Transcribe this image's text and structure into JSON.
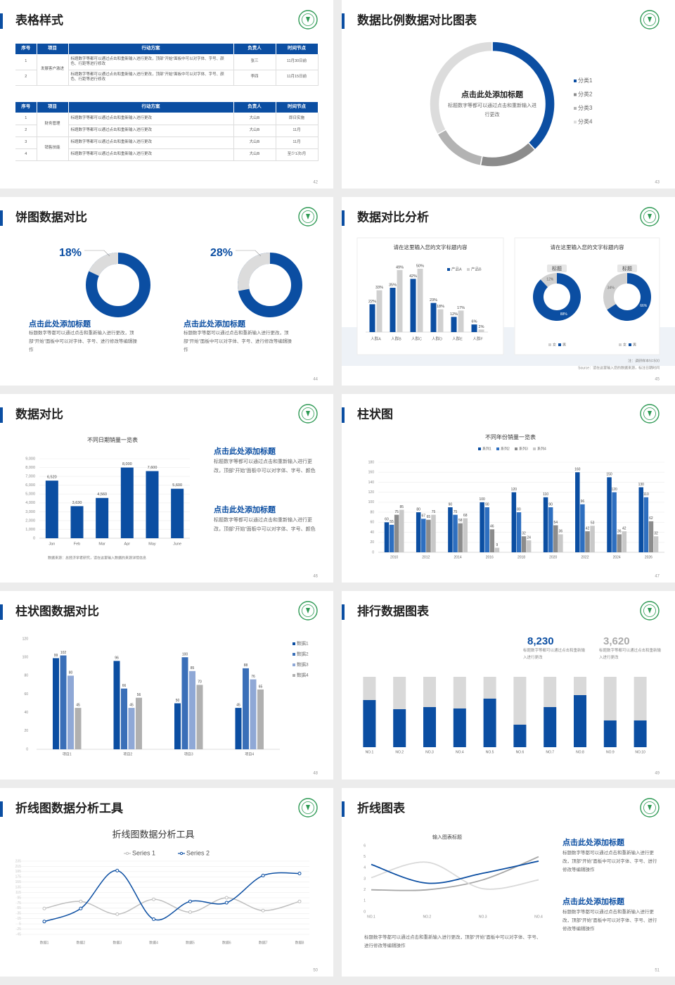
{
  "slides": [
    {
      "title": "表格样式",
      "page": 42,
      "tables": [
        {
          "header": [
            "序号",
            "项目",
            "行动方案",
            "负责人",
            "时间节点"
          ],
          "groups": [
            {
              "item": "发展客户激进",
              "rows": [
                [
                  1,
                  "标题数字等都可以通过点击和重新输入进行更改，顶部“开始”面板中可以对字体、字号、颜色、行距等进行修改",
                  "张三",
                  "11月30日前"
                ],
                [
                  2,
                  "标题数字等都可以通过点击和重新输入进行更改，顶部“开始”面板中可以对字体、字号、颜色、行距等进行修改",
                  "李四",
                  "11月15日前"
                ]
              ]
            }
          ]
        },
        {
          "header": [
            "序号",
            "项目",
            "行动方案",
            "负责人",
            "时间节点"
          ],
          "groups": [
            {
              "item": "财务管理",
              "rows": [
                [
                  1,
                  "标题数字等都可以通过点击和重新输入进行更改",
                  "大山B",
                  "即日实施"
                ],
                [
                  2,
                  "标题数字等都可以通过点击和重新输入进行更改",
                  "大山B",
                  "11月"
                ]
              ]
            },
            {
              "item": "销售技能",
              "rows": [
                [
                  3,
                  "标题数字等都可以通过点击和重新输入进行更改",
                  "大山B",
                  "11月"
                ],
                [
                  4,
                  "标题数字等都可以通过点击和重新输入进行更改",
                  "大山B",
                  "至少1次/月"
                ]
              ]
            }
          ]
        }
      ]
    },
    {
      "title": "数据比例数据对比图表",
      "page": 43,
      "chart": {
        "type": "donut",
        "heading": "点击此处添加标题",
        "text": "标题数字等都可以通过点击和重新输入进行更改",
        "categories": [
          "分类1",
          "分类2",
          "分类3",
          "分类4"
        ],
        "values": [
          38,
          15,
          14,
          33
        ],
        "colors": [
          "#0b4ea2",
          "#8c8c8c",
          "#b3b3b3",
          "#dcdcdc"
        ]
      }
    },
    {
      "title": "饼图数据对比",
      "page": 44,
      "items": [
        {
          "chart": {
            "type": "ring",
            "values": [
              18
            ],
            "value_labels": [
              "18%"
            ],
            "color": "#dcdcdc",
            "track_color": "#0b4ea2"
          },
          "heading": "点击此处添加标题",
          "text": "标题数字等都可以通过点击和重新输入进行更改，顶部“开始”面板中可以对字体、字号、进行修改等编辑操作"
        },
        {
          "chart": {
            "type": "ring",
            "values": [
              28
            ],
            "value_labels": [
              "28%"
            ],
            "color": "#dcdcdc",
            "track_color": "#0b4ea2"
          },
          "heading": "点击此处添加标题",
          "text": "标题数字等都可以通过点击和重新输入进行更改，顶部“开始”面板中可以对字体、字号、进行修改等编辑操作"
        }
      ]
    },
    {
      "title": "数据对比分析",
      "page": 45,
      "charts": [
        {
          "type": "bar",
          "title": "请在这里输入您的文字标题内容",
          "categories": [
            "人群A",
            "人群B",
            "人群C",
            "人群D",
            "人群E",
            "人群F"
          ],
          "series": [
            {
              "name": "产品A",
              "color": "#0b4ea2",
              "values": [
                22,
                35,
                42,
                23,
                12,
                6
              ],
              "value_labels": [
                "22%",
                "35%",
                "42%",
                "23%",
                "12%",
                "6%"
              ]
            },
            {
              "name": "产品B",
              "color": "#d0d0d0",
              "values": [
                33,
                49,
                50,
                18,
                17,
                2
              ],
              "value_labels": [
                "33%",
                "49%",
                "50%",
                "18%",
                "17%",
                "2%"
              ]
            }
          ]
        },
        {
          "type": "donut",
          "title": "请在这里输入您的文字标题内容",
          "legend": [
            "女",
            "男"
          ],
          "colors": [
            "#d0d0d0",
            "#0b4ea2"
          ],
          "items": [
            {
              "label": "标题",
              "values": [
                12,
                88
              ],
              "value_labels": [
                "12%",
                "88%"
              ]
            },
            {
              "label": "标题",
              "values": [
                34,
                66
              ],
              "value_labels": [
                "34%",
                "66%"
              ]
            }
          ]
        }
      ],
      "note": "注：调研样本N=500",
      "source": "Source：请在这里输入您的数据来源，标注日期时间"
    },
    {
      "title": "数据对比",
      "page": 46,
      "chart": {
        "type": "bar",
        "title": "不同日期销量一览表",
        "categories": [
          "Jan",
          "Feb",
          "Mar",
          "Apr",
          "May",
          "June"
        ],
        "values": [
          6520,
          3630,
          4560,
          8000,
          7600,
          5600
        ],
        "value_labels": [
          "6,520",
          "3,630",
          "4,560",
          "8,000",
          "7,600",
          "5,600"
        ],
        "color": "#0b4ea2",
        "ylim": [
          0,
          9000
        ],
        "yticks": [
          0,
          {
            "value": 1000,
            "label": "1,000"
          },
          {
            "value": 2000,
            "label": "2,000"
          },
          {
            "value": 3000,
            "label": "3,000"
          },
          {
            "value": 4000,
            "label": "4,000"
          },
          {
            "value": 5000,
            "label": "5,000"
          },
          {
            "value": 6000,
            "label": "6,000"
          },
          {
            "value": 7000,
            "label": "7,000"
          },
          {
            "value": 8000,
            "label": "8,000"
          },
          {
            "value": 9000,
            "label": "9,000"
          }
        ],
        "grid": true,
        "caption": "数据来源：总经济学者研究，请在这里输入数据的来源详情信息"
      },
      "blocks": [
        {
          "heading": "点击此处添加标题",
          "text": "标题数字等都可以通过点击和重新输入进行更改，顶部“开始”面板中可以对字体、字号、颜色"
        },
        {
          "heading": "点击此处添加标题",
          "text": "标题数字等都可以通过点击和重新输入进行更改，顶部“开始”面板中可以对字体、字号、颜色"
        }
      ]
    },
    {
      "title": "柱状图",
      "page": 47,
      "chart": {
        "type": "bar",
        "title": "不同年份销量一览表",
        "categories": [
          "2010",
          "2012",
          "2014",
          "2016",
          "2018",
          "2020",
          "2022",
          "2024",
          "2026"
        ],
        "series": [
          {
            "name": "系列1",
            "color": "#0b4ea2",
            "values": [
              60,
              80,
              90,
              100,
              120,
              110,
              160,
              150,
              130
            ]
          },
          {
            "name": "系列2",
            "color": "#2e6fc0",
            "values": [
              55,
              67,
              75,
              90,
              80,
              90,
              96,
              120,
              110
            ]
          },
          {
            "name": "系列3",
            "color": "#8c8c8c",
            "values": [
              75,
              65,
              58,
              46,
              32,
              54,
              42,
              36,
              62
            ]
          },
          {
            "name": "系列4",
            "color": "#c8c8c8",
            "values": [
              85,
              75,
              68,
              9,
              24,
              36,
              53,
              42,
              32
            ]
          }
        ],
        "ylim": [
          0,
          180
        ],
        "yticks": [
          0,
          20,
          40,
          60,
          80,
          100,
          120,
          140,
          160,
          180
        ],
        "grid": true
      }
    },
    {
      "title": "柱状图数据对比",
      "page": 48,
      "chart": {
        "type": "bar",
        "categories": [
          "项目1",
          "项目2",
          "项目3",
          "项目4"
        ],
        "series": [
          {
            "name": "数据1",
            "color": "#0b4ea2",
            "values": [
              99,
              96,
              50,
              45
            ]
          },
          {
            "name": "数据2",
            "color": "#3a6fb8",
            "values": [
              102,
              66,
              100,
              88
            ]
          },
          {
            "name": "数据3",
            "color": "#8fa8d6",
            "values": [
              80,
              45,
              85,
              76
            ]
          },
          {
            "name": "数据4",
            "color": "#b0b0b0",
            "values": [
              45,
              56,
              70,
              65
            ]
          }
        ],
        "ylim": [
          0,
          120
        ],
        "yticks": [
          0,
          20,
          40,
          60,
          80,
          100,
          120
        ],
        "grid": false,
        "legend": "right"
      }
    },
    {
      "title": "排行数据图表",
      "page": 49,
      "stats": [
        {
          "value": "8,230",
          "text": "标题数字等都可以通过点击和重新输入进行更改",
          "color": "#0b4ea2"
        },
        {
          "value": "3,620",
          "text": "标题数字等都可以通过点击和重新输入进行更改",
          "color": "#aaaaaa"
        }
      ],
      "chart": {
        "type": "stacked",
        "categories": [
          "NO.1",
          "NO.2",
          "NO.3",
          "NO.4",
          "NO.5",
          "NO.6",
          "NO.7",
          "NO.8",
          "NO.9",
          "NO.10"
        ],
        "series": [
          {
            "color": "#0b4ea2",
            "values": [
              67,
              54,
              57,
              55,
              69,
              32,
              57,
              74,
              38,
              38
            ]
          },
          {
            "color": "#d9d9d9",
            "values": [
              33,
              46,
              43,
              45,
              31,
              68,
              43,
              26,
              62,
              62
            ]
          }
        ],
        "ylim": [
          0,
          100
        ]
      }
    },
    {
      "title": "折线图数据分析工具",
      "page": 50,
      "chart": {
        "type": "line",
        "title": "折线图数据分析工具",
        "categories": [
          "数据1",
          "数据2",
          "数据3",
          "数据4",
          "数据5",
          "数据6",
          "数据7",
          "数据8"
        ],
        "series": [
          {
            "name": "Series 1",
            "color": "#bfbfbf",
            "values": [
              54,
              81,
              32,
              89,
              40,
              95,
              46,
              81
            ]
          },
          {
            "name": "Series 2",
            "color": "#0b4ea2",
            "values": [
              4,
              54,
              199,
              13,
              81,
              76,
              180,
              188
            ]
          }
        ],
        "ylim": [
          -45,
          235
        ],
        "yticks": [
          -45,
          -25,
          -5,
          15,
          35,
          55,
          75,
          95,
          115,
          135,
          155,
          175,
          195,
          215,
          235
        ],
        "grid": true,
        "smooth": true,
        "markers": true
      }
    },
    {
      "title": "折线图表",
      "page": 51,
      "chart": {
        "type": "line",
        "title": "输入图表标题",
        "categories": [
          "NO.1",
          "NO.2",
          "NO.3",
          "NO.4"
        ],
        "series": [
          {
            "color": "#a6a6a6",
            "values": [
              2,
              2,
              2.9,
              5
            ]
          },
          {
            "color": "#d9d9d9",
            "values": [
              3.1,
              4.5,
              2.1,
              2.9
            ]
          },
          {
            "color": "#0b4ea2",
            "values": [
              4.3,
              2.6,
              3.5,
              4.6
            ]
          }
        ],
        "ylim": [
          0,
          6
        ],
        "yticks": [
          0,
          1,
          2,
          3,
          4,
          5,
          6
        ],
        "grid": false,
        "smooth": true,
        "markers": false
      },
      "blocks": [
        {
          "heading": "点击此处添加标题",
          "text": "标题数字等都可以通过点击和重新输入进行更改，顶部“开始”面板中可以对字体、字号、进行修改等编辑操作"
        },
        {
          "heading": "点击此处添加标题",
          "text": "标题数字等都可以通过点击和重新输入进行更改，顶部“开始”面板中可以对字体、字号、进行修改等编辑操作"
        }
      ],
      "text": "标题数字等都可以通过点击和重新输入进行更改，顶部“开始”面板中可以对字体、字号、进行修改等编辑操作"
    }
  ]
}
